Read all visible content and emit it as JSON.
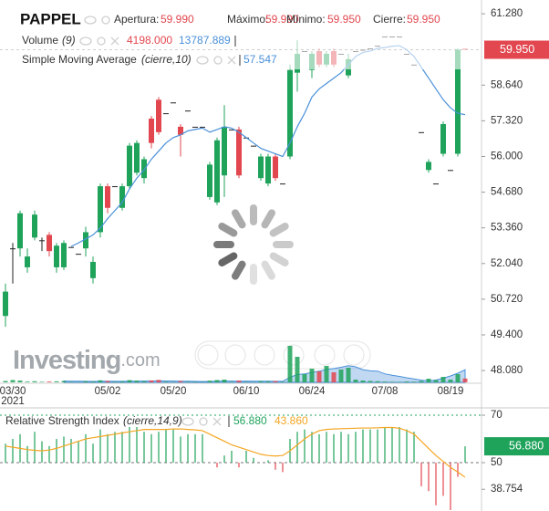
{
  "chart_data": [
    {
      "type": "candlestick",
      "title": "PAPPEL",
      "ohlc_legend": [
        {
          "name": "Apertura:",
          "label": "59.990"
        },
        {
          "name": "Máximo:",
          "label": "59.990"
        },
        {
          "name": "Mínimo:",
          "label": "59.950"
        },
        {
          "name": "Cierre:",
          "label": "59.950"
        }
      ],
      "categories": [
        null,
        "03/30",
        null,
        null,
        null,
        null,
        null,
        null,
        null,
        null,
        null,
        null,
        null,
        null,
        "05/02",
        null,
        null,
        null,
        null,
        null,
        null,
        null,
        null,
        "05/20",
        null,
        null,
        null,
        null,
        null,
        null,
        null,
        null,
        null,
        "06/10",
        null,
        null,
        null,
        null,
        null,
        null,
        null,
        null,
        "06/24",
        null,
        null,
        null,
        null,
        null,
        null,
        null,
        null,
        null,
        "07/08",
        null,
        null,
        null,
        null,
        null,
        null,
        null,
        null,
        "08/19",
        null,
        null
      ],
      "year_label": "2021",
      "open": [
        50.1,
        52.6,
        52.6,
        51.9,
        53.0,
        52.9,
        53.1,
        51.9,
        51.9,
        52.65,
        52.4,
        52.6,
        51.5,
        53.2,
        54.9,
        54.9,
        54.1,
        54.9,
        55.4,
        55.2,
        57.4,
        58.1,
        57.6,
        58.0,
        57.1,
        57.7,
        57.1,
        57.1,
        54.5,
        54.3,
        55.3,
        57.0,
        57.0,
        56.7,
        56.4,
        55.2,
        55.0,
        56.0,
        55.0,
        56.0,
        59.1,
        59.9,
        59.2,
        59.9,
        59.4,
        59.9,
        59.8,
        59.0,
        59.9,
        59.95,
        60.0,
        60.1,
        60.44,
        60.44,
        60.44,
        59.8,
        59.4,
        56.9,
        55.5,
        55.0,
        56.1,
        55.5,
        56.1,
        59.99
      ],
      "high": [
        51.3,
        52.8,
        54.0,
        52.6,
        54.0,
        53.0,
        53.2,
        52.8,
        52.9,
        52.65,
        52.4,
        53.4,
        52.3,
        55.0,
        55.0,
        54.9,
        55.0,
        56.5,
        56.6,
        56.0,
        57.5,
        58.2,
        57.6,
        58.0,
        57.2,
        57.7,
        57.1,
        57.1,
        55.8,
        56.7,
        57.9,
        57.0,
        57.1,
        56.7,
        56.4,
        56.1,
        56.1,
        56.1,
        55.0,
        59.4,
        60.3,
        59.9,
        59.9,
        60.0,
        59.9,
        60.0,
        59.8,
        59.8,
        59.9,
        59.95,
        60.0,
        60.1,
        60.44,
        60.44,
        60.44,
        59.8,
        59.4,
        56.9,
        55.9,
        55.0,
        57.3,
        55.5,
        60.0,
        59.99
      ],
      "low": [
        49.7,
        51.3,
        52.3,
        51.7,
        52.9,
        52.5,
        52.3,
        51.7,
        51.8,
        52.65,
        52.4,
        52.3,
        51.3,
        53.0,
        53.9,
        54.9,
        54.0,
        54.8,
        55.3,
        55.0,
        56.3,
        56.8,
        57.6,
        58.0,
        56.0,
        57.7,
        57.1,
        57.1,
        54.4,
        54.2,
        54.5,
        57.0,
        55.2,
        56.7,
        56.4,
        55.1,
        54.9,
        55.1,
        55.0,
        55.9,
        58.4,
        59.9,
        58.9,
        59.3,
        59.3,
        59.3,
        59.8,
        58.9,
        59.9,
        59.95,
        60.0,
        60.1,
        60.44,
        60.44,
        60.44,
        59.8,
        59.4,
        56.9,
        55.4,
        55.0,
        56.0,
        55.5,
        56.0,
        59.95
      ],
      "close": [
        51.0,
        52.6,
        53.9,
        52.3,
        53.85,
        52.9,
        52.5,
        52.7,
        52.8,
        52.65,
        52.4,
        53.2,
        52.1,
        54.9,
        54.1,
        54.9,
        54.9,
        56.4,
        56.5,
        55.9,
        56.5,
        56.9,
        57.6,
        58.0,
        56.8,
        57.7,
        57.1,
        57.1,
        55.7,
        56.6,
        57.1,
        57.0,
        55.3,
        56.7,
        56.4,
        56.0,
        56.0,
        55.2,
        55.0,
        59.2,
        59.8,
        59.9,
        59.8,
        59.4,
        59.8,
        59.4,
        59.8,
        59.6,
        59.9,
        59.95,
        60.0,
        60.1,
        60.44,
        60.44,
        60.44,
        59.8,
        59.4,
        56.9,
        55.8,
        55.0,
        57.2,
        55.5,
        59.95,
        59.95
      ],
      "up_color": "#1fa35b",
      "down_color": "#e2474f",
      "flat_color": "#222",
      "ylim": [
        47.61,
        61.79
      ],
      "yticks": [
        {
          "value": 61.28,
          "label": "61.280"
        },
        {
          "value": 58.64,
          "label": "58.640"
        },
        {
          "value": 57.32,
          "label": "57.320"
        },
        {
          "value": 56.0,
          "label": "56.000"
        },
        {
          "value": 54.68,
          "label": "54.680"
        },
        {
          "value": 53.36,
          "label": "53.360"
        },
        {
          "value": 52.04,
          "label": "52.040"
        },
        {
          "value": 50.72,
          "label": "50.720"
        },
        {
          "value": 49.4,
          "label": "49.400"
        },
        {
          "value": 48.08,
          "label": "48.080"
        }
      ],
      "volume": {
        "name": "Volume",
        "params": "(9)",
        "value_label": "4198.000",
        "sma_label": "13787.889",
        "sma_color": "#4a90d9",
        "ylim": [
          0,
          50000
        ],
        "values": [
          1500,
          2500,
          2000,
          800,
          1200,
          600,
          900,
          1100,
          1400,
          500,
          400,
          1300,
          900,
          2200,
          1500,
          600,
          1000,
          2400,
          1800,
          1200,
          2000,
          2600,
          700,
          500,
          1500,
          600,
          500,
          400,
          1800,
          2500,
          3000,
          600,
          1900,
          500,
          400,
          1200,
          1000,
          1400,
          600,
          40000,
          28000,
          9000,
          15000,
          12000,
          18000,
          11000,
          14000,
          16000,
          3000,
          2000,
          1500,
          1200,
          800,
          600,
          500,
          900,
          700,
          1500,
          4000,
          2500,
          6000,
          3000,
          9000,
          4198
        ],
        "sma_values": [
          null,
          null,
          null,
          null,
          null,
          null,
          null,
          null,
          1500,
          1300,
          1200,
          1100,
          1000,
          1100,
          1200,
          1100,
          1100,
          1300,
          1400,
          1400,
          1500,
          1600,
          1500,
          1400,
          1300,
          1200,
          1000,
          900,
          1000,
          1200,
          1400,
          1400,
          1300,
          1400,
          1300,
          1200,
          1200,
          1100,
          1100,
          5500,
          8500,
          9300,
          10900,
          12200,
          14100,
          15100,
          16500,
          18300,
          17000,
          13900,
          12600,
          12300,
          9300,
          7800,
          6500,
          5000,
          3700,
          2400,
          1800,
          2500,
          4500,
          7000,
          10000,
          13787.889
        ]
      },
      "sma": {
        "name": "Simple Moving Average",
        "params": "(cierre,10)",
        "value_label": "57.547",
        "color": "#4a90d9",
        "values": [
          null,
          null,
          null,
          null,
          null,
          null,
          null,
          null,
          null,
          52.67,
          52.8,
          52.95,
          53.1,
          53.35,
          53.7,
          54.0,
          54.3,
          54.8,
          55.2,
          55.5,
          55.9,
          56.2,
          56.5,
          56.7,
          56.8,
          56.95,
          57.0,
          57.05,
          56.9,
          57.0,
          57.1,
          57.05,
          56.9,
          56.7,
          56.5,
          56.3,
          56.2,
          56.1,
          56.0,
          56.5,
          57.1,
          57.6,
          58.2,
          58.5,
          58.7,
          58.9,
          59.1,
          59.4,
          59.7,
          59.85,
          59.9,
          60.0,
          60.03,
          60.08,
          60.1,
          59.95,
          59.7,
          59.3,
          58.9,
          58.5,
          58.1,
          57.8,
          57.6,
          57.547
        ]
      }
    },
    {
      "type": "rsi",
      "title": "Relative Strength Index",
      "params": "(cierre,14,9)",
      "ylim": [
        29.6,
        72.7
      ],
      "yticks": [
        70,
        50,
        {
          "value": 38.754,
          "label": "38.754"
        }
      ],
      "baseline": 50,
      "series": [
        {
          "color": "#1fa35b",
          "down_color": "#e2474f",
          "value_label": "56.880",
          "values": [
            58,
            60,
            62,
            57,
            63,
            59,
            57,
            60,
            61,
            60,
            59,
            62,
            58,
            64,
            62,
            63,
            63,
            65,
            65,
            63,
            62,
            63,
            64,
            64,
            61,
            62,
            62,
            62,
            50,
            48,
            53,
            55,
            48,
            55,
            52,
            50,
            51,
            47,
            46,
            60,
            63,
            64,
            63,
            62,
            63,
            62,
            63,
            62,
            63,
            64,
            64,
            64,
            65,
            65,
            65,
            64,
            63,
            40,
            38,
            32,
            36,
            30,
            44,
            56.88
          ]
        },
        {
          "color": "#f5a623",
          "value_label": "43.860",
          "values": [
            57,
            56.5,
            56,
            55.5,
            55.2,
            55,
            55.3,
            56,
            57,
            58,
            59,
            60,
            60.5,
            61,
            61.5,
            62,
            62.5,
            63,
            63.5,
            64,
            64,
            64,
            64,
            64.2,
            64.2,
            64,
            63.8,
            63.5,
            62,
            60.5,
            59,
            57.5,
            56.5,
            55.5,
            54.5,
            53.5,
            53,
            52.8,
            53,
            55,
            57.5,
            60,
            62,
            63.5,
            64,
            64.2,
            64.3,
            64.4,
            64.5,
            64.6,
            64.6,
            64.7,
            64.8,
            64.8,
            64.5,
            63.5,
            62,
            59,
            56,
            53,
            50.5,
            48,
            46,
            43.86
          ]
        }
      ]
    }
  ],
  "watermark": [
    "Investing",
    ".com"
  ]
}
